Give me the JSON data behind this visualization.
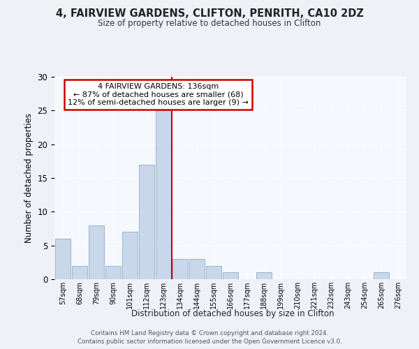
{
  "title1": "4, FAIRVIEW GARDENS, CLIFTON, PENRITH, CA10 2DZ",
  "title2": "Size of property relative to detached houses in Clifton",
  "xlabel": "Distribution of detached houses by size in Clifton",
  "ylabel": "Number of detached properties",
  "bin_labels": [
    "57sqm",
    "68sqm",
    "79sqm",
    "90sqm",
    "101sqm",
    "112sqm",
    "123sqm",
    "134sqm",
    "144sqm",
    "155sqm",
    "166sqm",
    "177sqm",
    "188sqm",
    "199sqm",
    "210sqm",
    "221sqm",
    "232sqm",
    "243sqm",
    "254sqm",
    "265sqm",
    "276sqm"
  ],
  "bar_values": [
    6,
    2,
    8,
    2,
    7,
    17,
    25,
    3,
    3,
    2,
    1,
    0,
    1,
    0,
    0,
    0,
    0,
    0,
    0,
    1,
    0
  ],
  "bar_color": "#c8d8ea",
  "bar_edge_color": "#9ab4cc",
  "vline_color": "#cc0000",
  "annotation_title": "4 FAIRVIEW GARDENS: 136sqm",
  "annotation_line1": "← 87% of detached houses are smaller (68)",
  "annotation_line2": "12% of semi-detached houses are larger (9) →",
  "annotation_box_edgecolor": "#cc0000",
  "ylim": [
    0,
    30
  ],
  "yticks": [
    0,
    5,
    10,
    15,
    20,
    25,
    30
  ],
  "footer1": "Contains HM Land Registry data © Crown copyright and database right 2024.",
  "footer2": "Contains public sector information licensed under the Open Government Licence v3.0.",
  "bg_color": "#eef2f7",
  "plot_bg_color": "#f5f8fc"
}
